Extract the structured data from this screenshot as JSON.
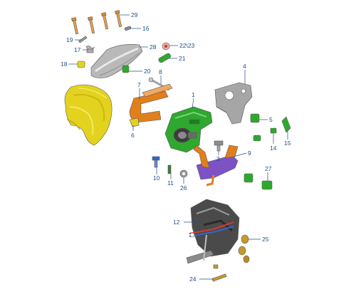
{
  "palette": {
    "callout": "#1f4e8c",
    "yellow": "#e3d21e",
    "green": "#2ea82e",
    "orange": "#e07f1c",
    "purple": "#7d52c4",
    "grey": "#9a9a9a",
    "dark": "#3a3a3a",
    "gold": "#c79a2a",
    "red": "#d33a2a",
    "blue": "#3366cc"
  },
  "parts": [
    {
      "id": "p1",
      "label": "1",
      "name": "ignition-lock-housing"
    },
    {
      "id": "p2",
      "label": "2",
      "name": "lock-cylinder"
    },
    {
      "id": "p3",
      "label": "3",
      "name": "screw"
    },
    {
      "id": "p4",
      "label": "4",
      "name": "support-bracket"
    },
    {
      "id": "p5",
      "label": "5",
      "name": "rubber-buffer"
    },
    {
      "id": "p6",
      "label": "6",
      "name": "clip"
    },
    {
      "id": "p7",
      "label": "7",
      "name": "actuator-bracket"
    },
    {
      "id": "p8",
      "label": "8",
      "name": "pin"
    },
    {
      "id": "p9",
      "label": "9",
      "name": "lever-assembly"
    },
    {
      "id": "p10",
      "label": "10",
      "name": "screw-blue"
    },
    {
      "id": "p11",
      "label": "11",
      "name": "spring-clip"
    },
    {
      "id": "p12",
      "label": "12",
      "name": "pedal-frame"
    },
    {
      "id": "p14",
      "label": "14",
      "name": "clip-small"
    },
    {
      "id": "p15",
      "label": "15",
      "name": "fastener"
    },
    {
      "id": "p16",
      "label": "16",
      "name": "pin-small"
    },
    {
      "id": "p17",
      "label": "17",
      "name": "spring"
    },
    {
      "id": "p18",
      "label": "18",
      "name": "nut-clip"
    },
    {
      "id": "p19",
      "label": "19",
      "name": "screw-small"
    },
    {
      "id": "p20",
      "label": "20",
      "name": "bush"
    },
    {
      "id": "p21",
      "label": "21",
      "name": "sleeve"
    },
    {
      "id": "p22",
      "label": "22\\23",
      "name": "nut-washer"
    },
    {
      "id": "p24",
      "label": "24",
      "name": "bolt"
    },
    {
      "id": "p25",
      "label": "25",
      "name": "nut"
    },
    {
      "id": "p26",
      "label": "26",
      "name": "washer"
    },
    {
      "id": "p27",
      "label": "27",
      "name": "bearing-bush"
    },
    {
      "id": "p28",
      "label": "28",
      "name": "cover-upper"
    },
    {
      "id": "p29",
      "label": "29",
      "name": "screws-set"
    }
  ]
}
